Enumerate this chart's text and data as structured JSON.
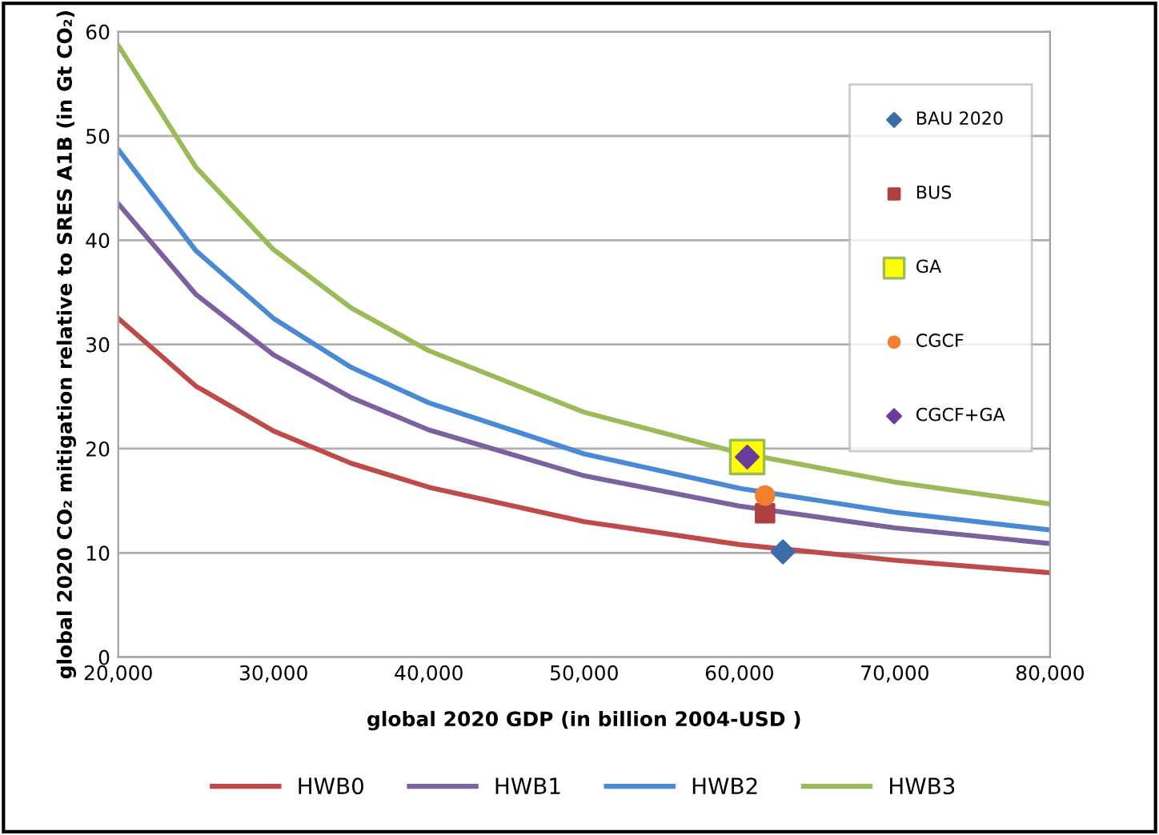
{
  "chart_data": {
    "type": "line",
    "xlabel": "global 2020 GDP (in billion 2004-USD )",
    "ylabel": "global 2020 CO₂ mitigation relative to SRES A1B (in Gt CO₂)",
    "xlim": [
      20000,
      80000
    ],
    "ylim": [
      0,
      60
    ],
    "xticks": [
      {
        "value": 20000,
        "label": "20,000"
      },
      {
        "value": 30000,
        "label": "30,000"
      },
      {
        "value": 40000,
        "label": "40,000"
      },
      {
        "value": 50000,
        "label": "50,000"
      },
      {
        "value": 60000,
        "label": "60,000"
      },
      {
        "value": 70000,
        "label": "70,000"
      },
      {
        "value": 80000,
        "label": "80,000"
      }
    ],
    "yticks": [
      0,
      10,
      20,
      30,
      40,
      50,
      60
    ],
    "grid": "y",
    "legend": "bottom",
    "x": [
      20000,
      25000,
      30000,
      35000,
      40000,
      50000,
      60000,
      70000,
      80000
    ],
    "series": [
      {
        "name": "HWB0",
        "color": "#be4b48",
        "marker": "none",
        "values": [
          32.5,
          26,
          21.7,
          18.6,
          16.3,
          13,
          10.8,
          9.3,
          8.1
        ]
      },
      {
        "name": "HWB1",
        "color": "#7d60a0",
        "marker": "none",
        "values": [
          43.5,
          34.8,
          29,
          24.9,
          21.8,
          17.4,
          14.5,
          12.4,
          10.9
        ]
      },
      {
        "name": "HWB2",
        "color": "#4a8ad4",
        "marker": "none",
        "values": [
          48.7,
          39,
          32.5,
          27.8,
          24.4,
          19.5,
          16.2,
          13.9,
          12.2
        ]
      },
      {
        "name": "HWB3",
        "color": "#9bbb59",
        "marker": "none",
        "values": [
          58.7,
          47,
          39.1,
          33.5,
          29.4,
          23.5,
          19.6,
          16.8,
          14.7
        ]
      },
      {
        "name": "BAU 2020",
        "type": "scatter",
        "color": "#3b6ea8",
        "marker": "diamond",
        "x": [
          62800
        ],
        "values": [
          10.1
        ]
      },
      {
        "name": "BUS",
        "type": "scatter",
        "color": "#b04040",
        "marker": "square",
        "x": [
          61650
        ],
        "values": [
          13.8
        ]
      },
      {
        "name": "GA",
        "type": "scatter",
        "color": "#ffff00",
        "marker": "square",
        "x": [
          60500
        ],
        "values": [
          19.2
        ]
      },
      {
        "name": "CGCF",
        "type": "scatter",
        "color": "#f08030",
        "marker": "circle",
        "x": [
          61650
        ],
        "values": [
          15.5
        ]
      },
      {
        "name": "CGCF+GA",
        "type": "scatter",
        "color": "#6a3d9a",
        "marker": "diamond",
        "x": [
          60500
        ],
        "values": [
          19.2
        ]
      }
    ]
  }
}
